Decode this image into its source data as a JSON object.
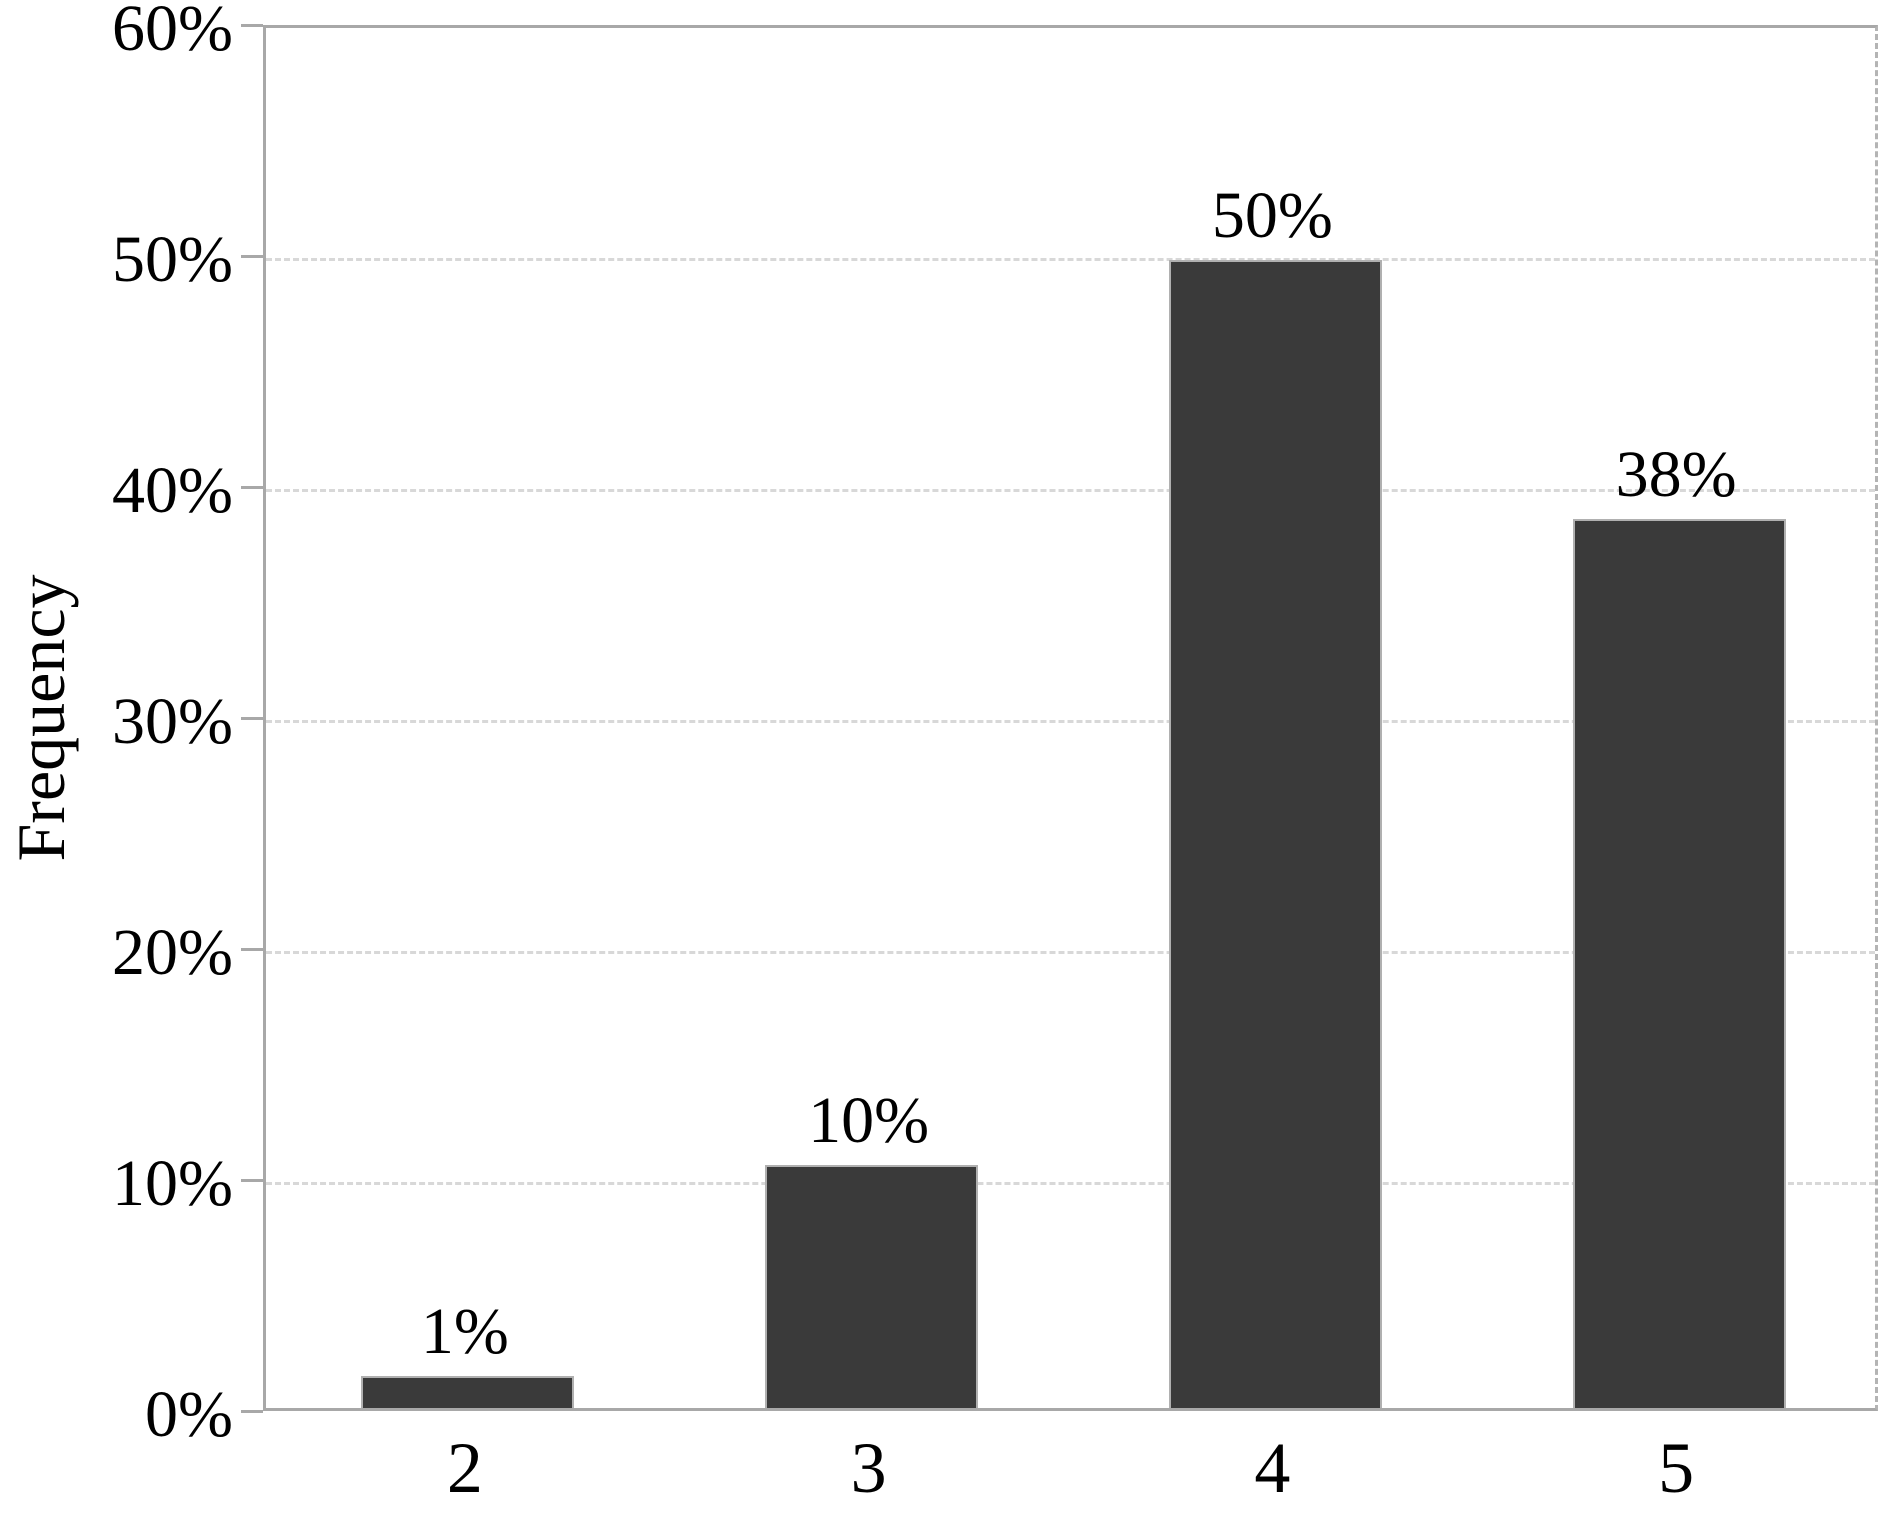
{
  "chart_data": {
    "type": "bar",
    "title": "",
    "xlabel": "",
    "ylabel": "Frequency",
    "categories": [
      "2",
      "3",
      "4",
      "5"
    ],
    "values": [
      1,
      10,
      50,
      38
    ],
    "bar_labels": [
      "1%",
      "10%",
      "50%",
      "38%"
    ],
    "rendered_heights_pct": [
      1.4,
      10.5,
      49.7,
      38.5
    ],
    "ylim": [
      0,
      60
    ],
    "ytick_values": [
      0,
      10,
      20,
      30,
      40,
      50,
      60
    ],
    "ytick_labels": [
      "0%",
      "10%",
      "20%",
      "30%",
      "40%",
      "50%",
      "60%"
    ],
    "grid": "horizontal-dashed",
    "legend": "none",
    "colors": {
      "bar_fill": "#3a3a3a",
      "bar_border": "#b0b0b0",
      "axis": "#a8a8a8",
      "gridline": "#d8d8d8",
      "text": "#000000",
      "background": "#ffffff"
    }
  }
}
